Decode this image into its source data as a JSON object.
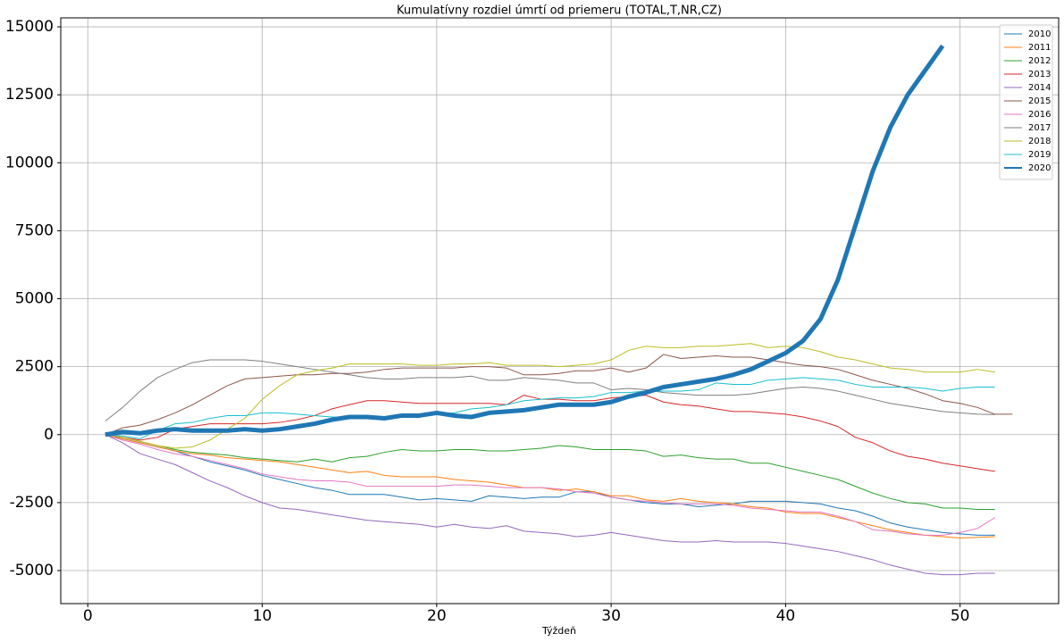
{
  "chart_data": {
    "type": "line",
    "title": "Kumulatívny rozdiel úmrtí od priemeru (TOTAL,T,NR,CZ)",
    "x_label": "Týždeň",
    "x": [
      1,
      2,
      3,
      4,
      5,
      6,
      7,
      8,
      9,
      10,
      11,
      12,
      13,
      14,
      15,
      16,
      17,
      18,
      19,
      20,
      21,
      22,
      23,
      24,
      25,
      26,
      27,
      28,
      29,
      30,
      31,
      32,
      33,
      34,
      35,
      36,
      37,
      38,
      39,
      40,
      41,
      42,
      43,
      44,
      45,
      46,
      47,
      48,
      49,
      50,
      51,
      52,
      53
    ],
    "xlim": [
      -1.55,
      55.65
    ],
    "ylim": [
      -6215,
      15330
    ],
    "xticks": [
      0,
      10,
      20,
      30,
      40,
      50
    ],
    "yticks": [
      -5000,
      -2500,
      0,
      2500,
      5000,
      7500,
      10000,
      12500,
      15000
    ],
    "grid": true,
    "legend": "upper right",
    "series": [
      {
        "name": "2010",
        "color": "#1f77b4",
        "linewidth": 1,
        "values": [
          0,
          -150,
          -300,
          -450,
          -600,
          -800,
          -1000,
          -1150,
          -1300,
          -1500,
          -1650,
          -1800,
          -1950,
          -2050,
          -2200,
          -2200,
          -2200,
          -2300,
          -2400,
          -2350,
          -2400,
          -2450,
          -2250,
          -2300,
          -2350,
          -2300,
          -2300,
          -2100,
          -2100,
          -2300,
          -2400,
          -2500,
          -2550,
          -2550,
          -2650,
          -2600,
          -2550,
          -2450,
          -2450,
          -2450,
          -2500,
          -2550,
          -2700,
          -2800,
          -3000,
          -3250,
          -3400,
          -3500,
          -3600,
          -3650,
          -3700,
          -3700,
          null
        ]
      },
      {
        "name": "2011",
        "color": "#ff7f0e",
        "linewidth": 1,
        "values": [
          0,
          -150,
          -300,
          -450,
          -600,
          -700,
          -750,
          -850,
          -900,
          -950,
          -1000,
          -1100,
          -1200,
          -1300,
          -1400,
          -1350,
          -1500,
          -1550,
          -1550,
          -1550,
          -1650,
          -1700,
          -1750,
          -1850,
          -1950,
          -1950,
          -2050,
          -2000,
          -2100,
          -2250,
          -2250,
          -2400,
          -2450,
          -2350,
          -2450,
          -2500,
          -2550,
          -2650,
          -2700,
          -2850,
          -2900,
          -2900,
          -3050,
          -3200,
          -3350,
          -3500,
          -3600,
          -3700,
          -3750,
          -3800,
          -3780,
          -3750,
          null
        ]
      },
      {
        "name": "2012",
        "color": "#2ca02c",
        "linewidth": 1,
        "values": [
          0,
          -100,
          -250,
          -400,
          -550,
          -650,
          -700,
          -750,
          -850,
          -900,
          -950,
          -1000,
          -900,
          -1000,
          -850,
          -800,
          -650,
          -550,
          -600,
          -600,
          -550,
          -550,
          -600,
          -600,
          -550,
          -500,
          -400,
          -450,
          -550,
          -550,
          -550,
          -600,
          -800,
          -750,
          -850,
          -900,
          -900,
          -1050,
          -1050,
          -1200,
          -1350,
          -1500,
          -1650,
          -1900,
          -2150,
          -2350,
          -2500,
          -2550,
          -2700,
          -2700,
          -2750,
          -2750,
          null
        ]
      },
      {
        "name": "2013",
        "color": "#d62728",
        "linewidth": 1,
        "values": [
          0,
          -100,
          -200,
          -100,
          200,
          300,
          400,
          400,
          400,
          400,
          450,
          550,
          700,
          950,
          1100,
          1250,
          1250,
          1200,
          1150,
          1150,
          1150,
          1150,
          1150,
          1100,
          1450,
          1300,
          1300,
          1250,
          1250,
          1350,
          1400,
          1450,
          1200,
          1100,
          1050,
          950,
          850,
          850,
          800,
          750,
          650,
          500,
          300,
          -100,
          -300,
          -600,
          -800,
          -900,
          -1050,
          -1150,
          -1250,
          -1350,
          null
        ]
      },
      {
        "name": "2014",
        "color": "#9467bd",
        "linewidth": 1,
        "values": [
          0,
          -300,
          -700,
          -900,
          -1100,
          -1400,
          -1700,
          -1950,
          -2250,
          -2500,
          -2700,
          -2750,
          -2850,
          -2950,
          -3050,
          -3150,
          -3200,
          -3250,
          -3300,
          -3400,
          -3300,
          -3400,
          -3450,
          -3350,
          -3550,
          -3600,
          -3650,
          -3750,
          -3700,
          -3600,
          -3700,
          -3800,
          -3900,
          -3950,
          -3950,
          -3900,
          -3950,
          -3950,
          -3950,
          -4000,
          -4100,
          -4200,
          -4300,
          -4450,
          -4600,
          -4800,
          -4950,
          -5100,
          -5150,
          -5150,
          -5100,
          -5100,
          null
        ]
      },
      {
        "name": "2015",
        "color": "#8c564b",
        "linewidth": 1,
        "values": [
          0,
          250,
          350,
          550,
          800,
          1100,
          1450,
          1800,
          2050,
          2100,
          2150,
          2200,
          2200,
          2250,
          2250,
          2300,
          2400,
          2450,
          2450,
          2450,
          2450,
          2500,
          2500,
          2450,
          2200,
          2200,
          2250,
          2350,
          2350,
          2450,
          2300,
          2450,
          2950,
          2800,
          2850,
          2900,
          2850,
          2850,
          2750,
          2650,
          2550,
          2500,
          2400,
          2200,
          2000,
          1850,
          1700,
          1500,
          1250,
          1150,
          1000,
          750,
          750
        ]
      },
      {
        "name": "2016",
        "color": "#e377c2",
        "linewidth": 1,
        "values": [
          0,
          -200,
          -350,
          -550,
          -700,
          -800,
          -950,
          -1100,
          -1250,
          -1450,
          -1550,
          -1650,
          -1700,
          -1700,
          -1750,
          -1900,
          -1900,
          -1900,
          -1900,
          -1900,
          -1850,
          -1850,
          -1900,
          -1950,
          -1950,
          -1950,
          -2000,
          -2100,
          -2150,
          -2300,
          -2400,
          -2450,
          -2500,
          -2550,
          -2550,
          -2550,
          -2600,
          -2700,
          -2750,
          -2800,
          -2850,
          -2850,
          -3000,
          -3200,
          -3500,
          -3550,
          -3650,
          -3700,
          -3700,
          -3600,
          -3450,
          -3050,
          null
        ]
      },
      {
        "name": "2017",
        "color": "#7f7f7f",
        "linewidth": 1,
        "values": [
          500,
          1000,
          1600,
          2100,
          2400,
          2650,
          2750,
          2750,
          2750,
          2700,
          2600,
          2500,
          2400,
          2300,
          2200,
          2100,
          2050,
          2050,
          2100,
          2100,
          2100,
          2150,
          2000,
          2000,
          2100,
          2050,
          2000,
          1900,
          1900,
          1650,
          1700,
          1650,
          1550,
          1500,
          1450,
          1450,
          1450,
          1500,
          1600,
          1700,
          1750,
          1700,
          1600,
          1450,
          1300,
          1150,
          1050,
          950,
          850,
          800,
          750,
          740,
          null
        ]
      },
      {
        "name": "2018",
        "color": "#bcbd22",
        "linewidth": 1,
        "values": [
          0,
          -100,
          -250,
          -400,
          -500,
          -450,
          -200,
          200,
          600,
          1300,
          1800,
          2200,
          2350,
          2450,
          2600,
          2600,
          2600,
          2600,
          2550,
          2550,
          2600,
          2600,
          2650,
          2550,
          2550,
          2550,
          2500,
          2550,
          2600,
          2750,
          3100,
          3250,
          3200,
          3200,
          3250,
          3250,
          3300,
          3350,
          3200,
          3250,
          3200,
          3050,
          2850,
          2750,
          2600,
          2450,
          2400,
          2300,
          2300,
          2300,
          2400,
          2300,
          null
        ]
      },
      {
        "name": "2019",
        "color": "#17becf",
        "linewidth": 1,
        "values": [
          0,
          -50,
          -150,
          150,
          400,
          450,
          600,
          700,
          700,
          800,
          800,
          750,
          700,
          650,
          650,
          650,
          650,
          700,
          700,
          750,
          800,
          950,
          1000,
          1100,
          1250,
          1300,
          1350,
          1350,
          1400,
          1550,
          1550,
          1600,
          1600,
          1600,
          1650,
          1900,
          1850,
          1850,
          2000,
          2050,
          2100,
          2050,
          2000,
          1850,
          1750,
          1750,
          1750,
          1700,
          1600,
          1700,
          1750,
          1750,
          null
        ]
      },
      {
        "name": "2020",
        "color": "#1f77b4",
        "linewidth": 5,
        "values": [
          0,
          100,
          50,
          150,
          200,
          150,
          150,
          150,
          200,
          150,
          200,
          300,
          400,
          550,
          650,
          650,
          600,
          700,
          700,
          800,
          700,
          650,
          800,
          850,
          900,
          1000,
          1100,
          1100,
          1100,
          1200,
          1400,
          1550,
          1750,
          1850,
          1950,
          2050,
          2200,
          2400,
          2700,
          3000,
          3450,
          4250,
          5700,
          7700,
          9700,
          11300,
          12500,
          13400,
          14300,
          null,
          null,
          null,
          null
        ]
      }
    ]
  }
}
